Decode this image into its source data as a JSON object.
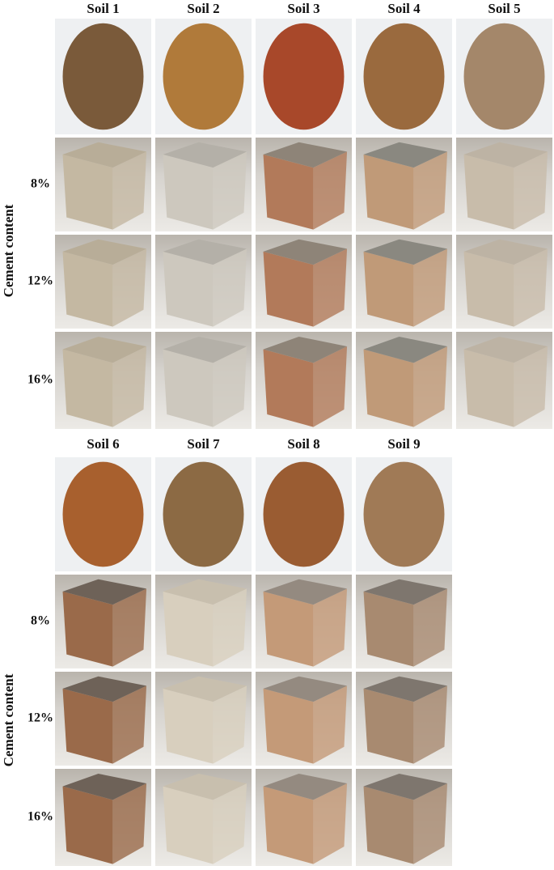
{
  "panels": [
    {
      "soils": [
        "Soil 1",
        "Soil 2",
        "Soil 3",
        "Soil 4",
        "Soil 5"
      ],
      "axis_label": "Cement content",
      "rows": [
        "8%",
        "12%",
        "16%"
      ]
    },
    {
      "soils": [
        "Soil 6",
        "Soil 7",
        "Soil 8",
        "Soil 9"
      ],
      "axis_label": "Cement content",
      "rows": [
        "8%",
        "12%",
        "16%"
      ]
    }
  ]
}
